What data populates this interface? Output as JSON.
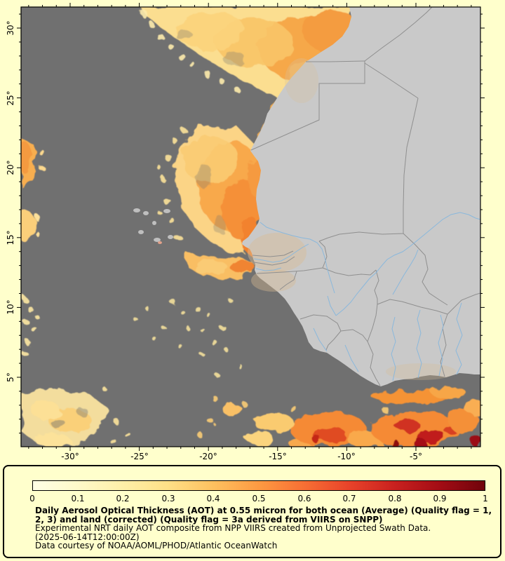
{
  "page": {
    "background_color": "#FFFFCC"
  },
  "map": {
    "ocean_color": "#707070",
    "land_color": "#C9C9C9",
    "country_border_color": "#8F8F8F",
    "river_color": "#8AB8DC",
    "frame_color": "#000000",
    "lat_labels": [
      "30°",
      "25°",
      "20°",
      "15°",
      "10°",
      "5°"
    ],
    "lon_labels": [
      "-30°",
      "-25°",
      "-20°",
      "-15°",
      "-10°",
      "-5°"
    ]
  },
  "legend": {
    "ticks": [
      "0",
      "0.1",
      "0.2",
      "0.3",
      "0.4",
      "0.5",
      "0.6",
      "0.7",
      "0.8",
      "0.9",
      "1"
    ],
    "colorbar_colors": [
      "#FFFFE5",
      "#FFF9C9",
      "#FFEFA8",
      "#FFDF86",
      "#FEC05F",
      "#FD9A42",
      "#F76F34",
      "#E8432A",
      "#C9211F",
      "#A30D15",
      "#70030B"
    ],
    "caption_bold": "Daily Aerosol Optical Thickness (AOT) at 0.55 micron for both ocean (Average) (Quality flag = 1, 2, 3) and land (corrected) (Quality flag = 3a derived from VIIRS on SNPP)",
    "caption_line2": "Experimental NRT daily AOT composite from NPP VIIRS created from Unprojected Swath Data.",
    "caption_line3": "(2025-06-14T12:00:00Z)",
    "caption_line4": "Data courtesy of NOAA/AOML/PHOD/Atlantic OceanWatch"
  },
  "chart_data": {
    "type": "heatmap",
    "title": "Daily Aerosol Optical Thickness (AOT) at 0.55 micron for both ocean (Average) (Quality flag = 1, 2, 3) and land (corrected) (Quality flag = 3a derived from VIIRS on SNPP)",
    "subtitle": "Experimental NRT daily AOT composite from NPP VIIRS created from Unprojected Swath Data.",
    "timestamp": "(2025-06-14T12:00:00Z)",
    "credit": "Data courtesy of NOAA/AOML/PHOD/Atlantic OceanWatch",
    "x_tick_labels_deg_lon": [
      -30,
      -25,
      -20,
      -15,
      -10,
      -5
    ],
    "y_tick_labels_deg_lat": [
      30,
      25,
      20,
      15,
      10,
      5
    ],
    "x_range_deg_lon": [
      -33.5,
      -0.3
    ],
    "y_range_deg_lat": [
      0,
      31.5
    ],
    "grid": false,
    "colorbar": {
      "position": "bottom",
      "min": 0,
      "max": 1,
      "ticks": [
        0,
        0.1,
        0.2,
        0.3,
        0.4,
        0.5,
        0.6,
        0.7,
        0.8,
        0.9,
        1
      ],
      "colors": [
        "#FFFFE5",
        "#FFF9C9",
        "#FFEFA8",
        "#FFDF86",
        "#FEC05F",
        "#FD9A42",
        "#F76F34",
        "#E8432A",
        "#C9211F",
        "#A30D15",
        "#70030B"
      ]
    },
    "features": [
      {
        "name": "saharan-dust-plume-north-off-morocco",
        "lon_range": [
          -25,
          -10
        ],
        "lat_range": [
          25,
          31.5
        ],
        "approx_aot": [
          0.15,
          0.45
        ]
      },
      {
        "name": "dust-plume-mauritania-senegal-coast",
        "lon_range": [
          -22.5,
          -16.5
        ],
        "lat_range": [
          12,
          22
        ],
        "approx_aot": [
          0.2,
          0.55
        ]
      },
      {
        "name": "west-edge-aerosol-patches",
        "lon_range": [
          -33.5,
          -31.5
        ],
        "lat_range": [
          3,
          22
        ],
        "approx_aot": [
          0.1,
          0.4
        ]
      },
      {
        "name": "southwest-speckled-patch",
        "lon_range": [
          -33.5,
          -26.5
        ],
        "lat_range": [
          0.5,
          4.5
        ],
        "approx_aot": [
          0.1,
          0.3
        ]
      },
      {
        "name": "gulf-of-guinea-smoke-band",
        "lon_range": [
          -20,
          -0.3
        ],
        "lat_range": [
          0,
          4
        ],
        "approx_aot": [
          0.3,
          1.0
        ]
      },
      {
        "name": "cape-verde-islands",
        "lon_range": [
          -25.4,
          -22.6
        ],
        "lat_range": [
          14.8,
          17.3
        ],
        "surface": "land"
      },
      {
        "name": "no-data-ocean",
        "color": "dark-gray"
      },
      {
        "name": "land-mask-west-africa",
        "color": "light-gray"
      }
    ]
  }
}
